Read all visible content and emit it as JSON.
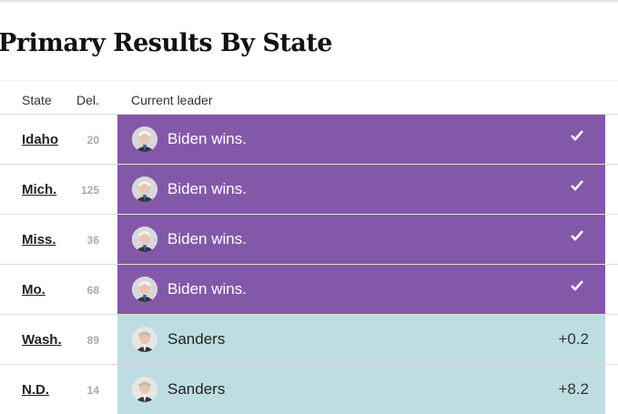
{
  "header": {
    "title": "Primary Results By State"
  },
  "table": {
    "columns": [
      "State",
      "Del.",
      "Current leader"
    ],
    "rows": [
      {
        "state": "Idaho",
        "delegates": 20,
        "leader": "Biden wins."
      },
      {
        "state": "Mich.",
        "delegates": 125,
        "leader": "Biden wins."
      },
      {
        "state": "Miss.",
        "delegates": 36,
        "leader": "Biden wins."
      },
      {
        "state": "Mo.",
        "delegates": 68,
        "leader": "Biden wins."
      },
      {
        "state": "Wash.",
        "delegates": 89,
        "leader": "Sanders",
        "margin": "+0.2"
      },
      {
        "state": "N.D.",
        "delegates": 14,
        "leader": "Sanders",
        "margin": "+8.2"
      }
    ]
  }
}
